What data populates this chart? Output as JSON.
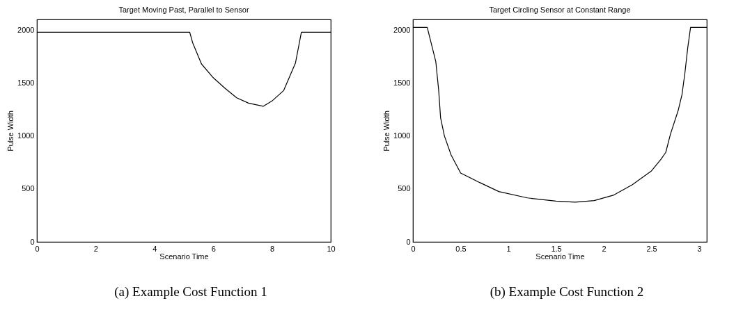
{
  "chart_data": [
    {
      "type": "line",
      "title": "Target Moving Past, Parallel to Sensor",
      "xlabel": "Scenario Time",
      "ylabel": "Pulse Width",
      "annotations": [
        "(a) Example Cost Function 1"
      ],
      "grid": false,
      "legend": false,
      "x": [
        0,
        5.2,
        5.3,
        5.6,
        6.0,
        6.4,
        6.8,
        7.2,
        7.7,
        8.0,
        8.4,
        8.8,
        9.0,
        10
      ],
      "series": [
        {
          "color": "#000000",
          "values": [
            1980,
            1980,
            1880,
            1680,
            1550,
            1450,
            1360,
            1310,
            1280,
            1330,
            1430,
            1690,
            1980,
            1980
          ]
        }
      ],
      "xlim": [
        0,
        10
      ],
      "xticks": [
        0,
        2,
        4,
        6,
        8,
        10
      ],
      "ylim": [
        0,
        2100
      ],
      "yticks": [
        0,
        500,
        1000,
        1500,
        2000
      ]
    },
    {
      "type": "line",
      "title": "Target Circling Sensor at Constant Range",
      "xlabel": "Scenario Time",
      "ylabel": "Pulse Width",
      "annotations": [
        "(b) Example Cost Function 2"
      ],
      "grid": false,
      "legend": false,
      "x": [
        0,
        0.15,
        0.24,
        0.27,
        0.29,
        0.33,
        0.4,
        0.5,
        0.7,
        0.9,
        1.2,
        1.5,
        1.7,
        1.9,
        2.1,
        2.3,
        2.5,
        2.6,
        2.65,
        2.7,
        2.78,
        2.82,
        2.85,
        2.88,
        2.91,
        3.08
      ],
      "series": [
        {
          "color": "#000000",
          "values": [
            2025,
            2025,
            1700,
            1430,
            1170,
            1000,
            820,
            650,
            560,
            475,
            415,
            385,
            375,
            390,
            440,
            540,
            670,
            780,
            845,
            1020,
            1240,
            1390,
            1590,
            1830,
            2025,
            2025
          ]
        }
      ],
      "xlim": [
        0,
        3.08
      ],
      "xticks": [
        0,
        0.5,
        1,
        1.5,
        2,
        2.5,
        3
      ],
      "ylim": [
        0,
        2100
      ],
      "yticks": [
        0,
        500,
        1000,
        1500,
        2000
      ]
    }
  ]
}
